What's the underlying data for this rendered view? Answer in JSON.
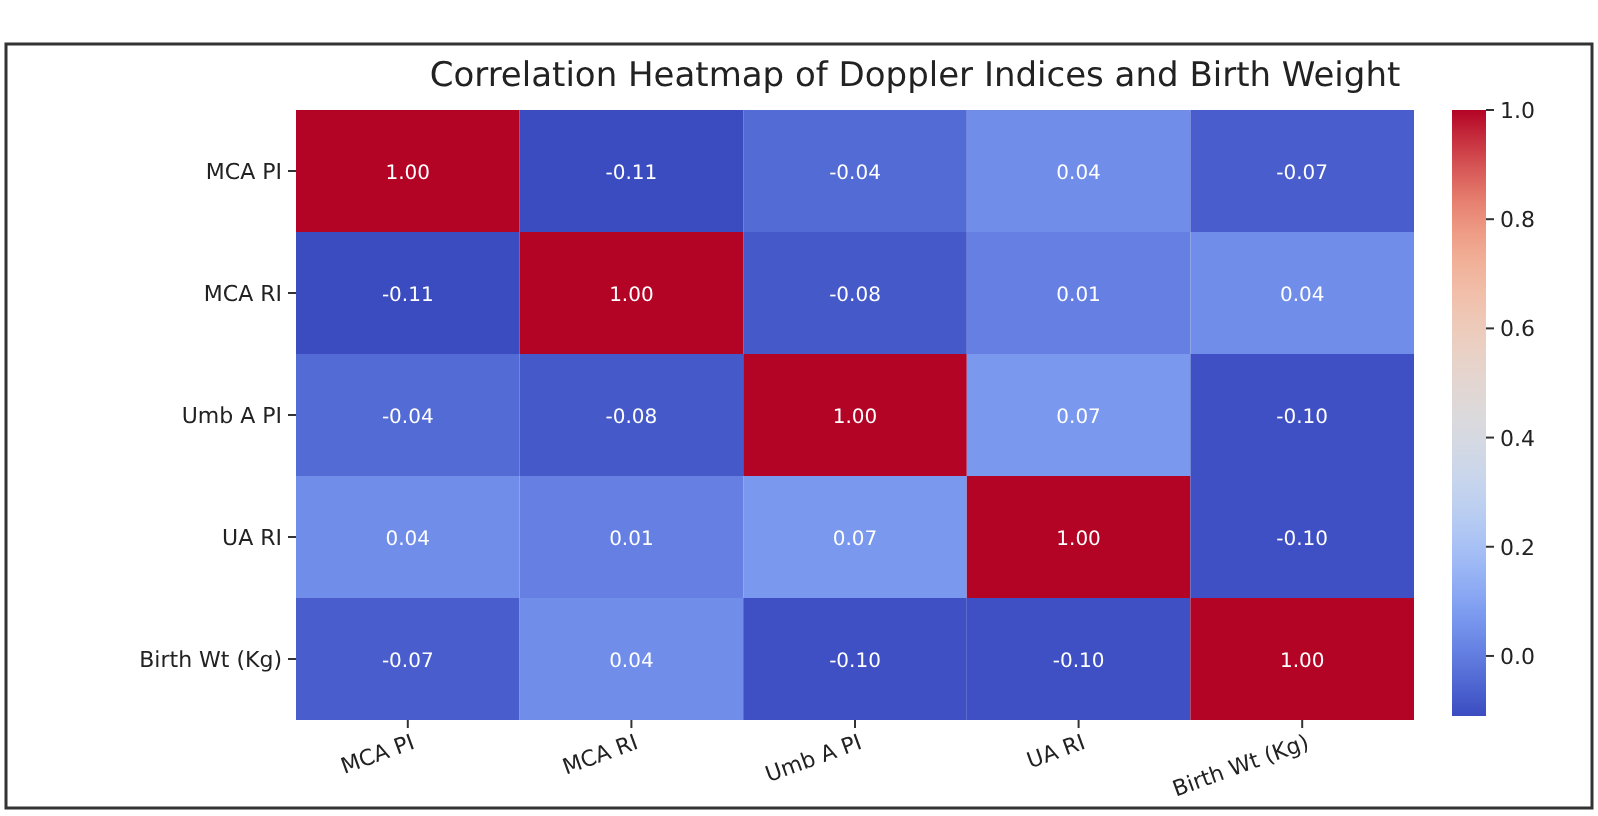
{
  "chart_data": {
    "type": "heatmap",
    "title": "Correlation Heatmap of Doppler Indices and Birth Weight",
    "categories": [
      "MCA PI",
      "MCA RI",
      "Umb A PI",
      "UA RI",
      "Birth Wt (Kg)"
    ],
    "y_categories": [
      "MCA PI",
      "MCA RI",
      "Umb A PI",
      "UA RI",
      "Birth Wt (Kg)"
    ],
    "cells": [
      [
        1.0,
        -0.11,
        -0.04,
        0.04,
        -0.07
      ],
      [
        -0.11,
        1.0,
        -0.08,
        0.01,
        0.04
      ],
      [
        -0.04,
        -0.08,
        1.0,
        0.07,
        -0.1
      ],
      [
        0.04,
        0.01,
        0.07,
        1.0,
        -0.1
      ],
      [
        -0.07,
        0.04,
        -0.1,
        -0.1,
        1.0
      ]
    ],
    "cell_labels": [
      [
        "1.00",
        "-0.11",
        "-0.04",
        "0.04",
        "-0.07"
      ],
      [
        "-0.11",
        "1.00",
        "-0.08",
        "0.01",
        "0.04"
      ],
      [
        "-0.04",
        "-0.08",
        "1.00",
        "0.07",
        "-0.10"
      ],
      [
        "0.04",
        "0.01",
        "0.07",
        "1.00",
        "-0.10"
      ],
      [
        "-0.07",
        "0.04",
        "-0.10",
        "-0.10",
        "1.00"
      ]
    ],
    "clim": [
      -0.11,
      1.0
    ],
    "cticks": [
      {
        "value": 0,
        "label": "0.0"
      },
      {
        "value": 0.2,
        "label": "0.2"
      },
      {
        "value": 0.4,
        "label": "0.4"
      },
      {
        "value": 0.6,
        "label": "0.6"
      },
      {
        "value": 0.8,
        "label": "0.8"
      },
      {
        "value": 1,
        "label": "1.0"
      }
    ],
    "data_labels": true
  }
}
